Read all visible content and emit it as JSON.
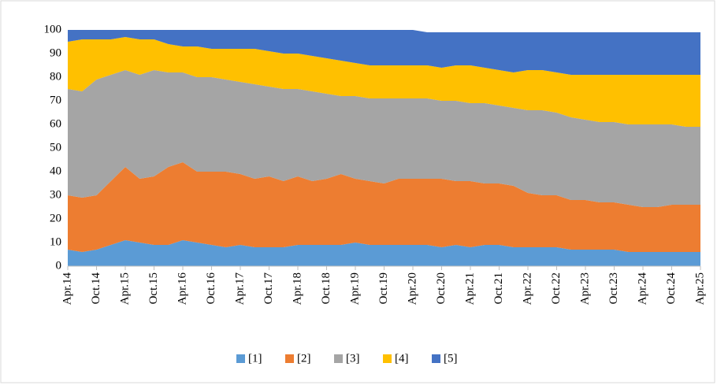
{
  "chart_data": {
    "type": "stacked_area",
    "categories": [
      "Apr.14",
      null,
      "Oct.14",
      null,
      "Apr.15",
      null,
      "Oct.15",
      null,
      "Apr.16",
      null,
      "Oct.16",
      null,
      "Apr.17",
      null,
      "Oct.17",
      null,
      "Apr.18",
      null,
      "Oct.18",
      null,
      "Apr.19",
      null,
      "Oct.19",
      null,
      "Apr.20",
      null,
      "Oct.20",
      null,
      "Apr.21",
      null,
      "Oct.21",
      null,
      "Apr.22",
      null,
      "Oct.22",
      null,
      "Apr.23",
      null,
      "Oct.23",
      null,
      "Apr.24",
      null,
      "Oct.24",
      null,
      "Apr.25"
    ],
    "series": [
      {
        "name": "[1]",
        "color": "#5b9bd5",
        "values": [
          7,
          6,
          7,
          9,
          11,
          10,
          9,
          9,
          11,
          10,
          9,
          8,
          9,
          8,
          8,
          8,
          9,
          9,
          9,
          9,
          10,
          9,
          9,
          9,
          9,
          9,
          8,
          9,
          8,
          9,
          9,
          8,
          8,
          8,
          8,
          7,
          7,
          7,
          7,
          6,
          6,
          6,
          6,
          6,
          6
        ]
      },
      {
        "name": "[2]",
        "color": "#ed7d31",
        "values": [
          23,
          23,
          23,
          27,
          31,
          27,
          29,
          33,
          33,
          30,
          31,
          32,
          30,
          29,
          30,
          28,
          29,
          27,
          28,
          30,
          27,
          27,
          26,
          28,
          28,
          28,
          29,
          27,
          28,
          26,
          26,
          26,
          23,
          22,
          22,
          21,
          21,
          20,
          20,
          20,
          19,
          19,
          20,
          20,
          20
        ]
      },
      {
        "name": "[3]",
        "color": "#a5a5a5",
        "values": [
          45,
          45,
          49,
          45,
          41,
          44,
          45,
          40,
          38,
          40,
          40,
          39,
          39,
          40,
          38,
          39,
          37,
          38,
          36,
          33,
          35,
          35,
          36,
          34,
          34,
          34,
          33,
          34,
          33,
          34,
          33,
          33,
          35,
          36,
          35,
          35,
          34,
          34,
          34,
          34,
          35,
          35,
          34,
          33,
          33
        ]
      },
      {
        "name": "[4]",
        "color": "#ffc000",
        "values": [
          20,
          22,
          17,
          15,
          14,
          15,
          13,
          12,
          11,
          13,
          12,
          13,
          14,
          15,
          15,
          15,
          15,
          15,
          15,
          15,
          14,
          14,
          14,
          14,
          14,
          14,
          14,
          15,
          16,
          15,
          15,
          15,
          17,
          17,
          17,
          18,
          19,
          20,
          20,
          21,
          21,
          21,
          21,
          22,
          22
        ]
      },
      {
        "name": "[5]",
        "color": "#4472c4",
        "values": [
          5,
          4,
          4,
          4,
          3,
          4,
          4,
          6,
          7,
          7,
          8,
          8,
          8,
          8,
          9,
          10,
          10,
          11,
          12,
          13,
          14,
          15,
          15,
          15,
          15,
          14,
          15,
          14,
          14,
          15,
          16,
          17,
          16,
          16,
          17,
          18,
          18,
          18,
          18,
          18,
          18,
          18,
          18,
          18,
          18
        ]
      }
    ],
    "ylim": [
      0,
      100
    ],
    "yticks": [
      0,
      10,
      20,
      30,
      40,
      50,
      60,
      70,
      80,
      90,
      100
    ],
    "grid": false,
    "legend": "bottom"
  }
}
